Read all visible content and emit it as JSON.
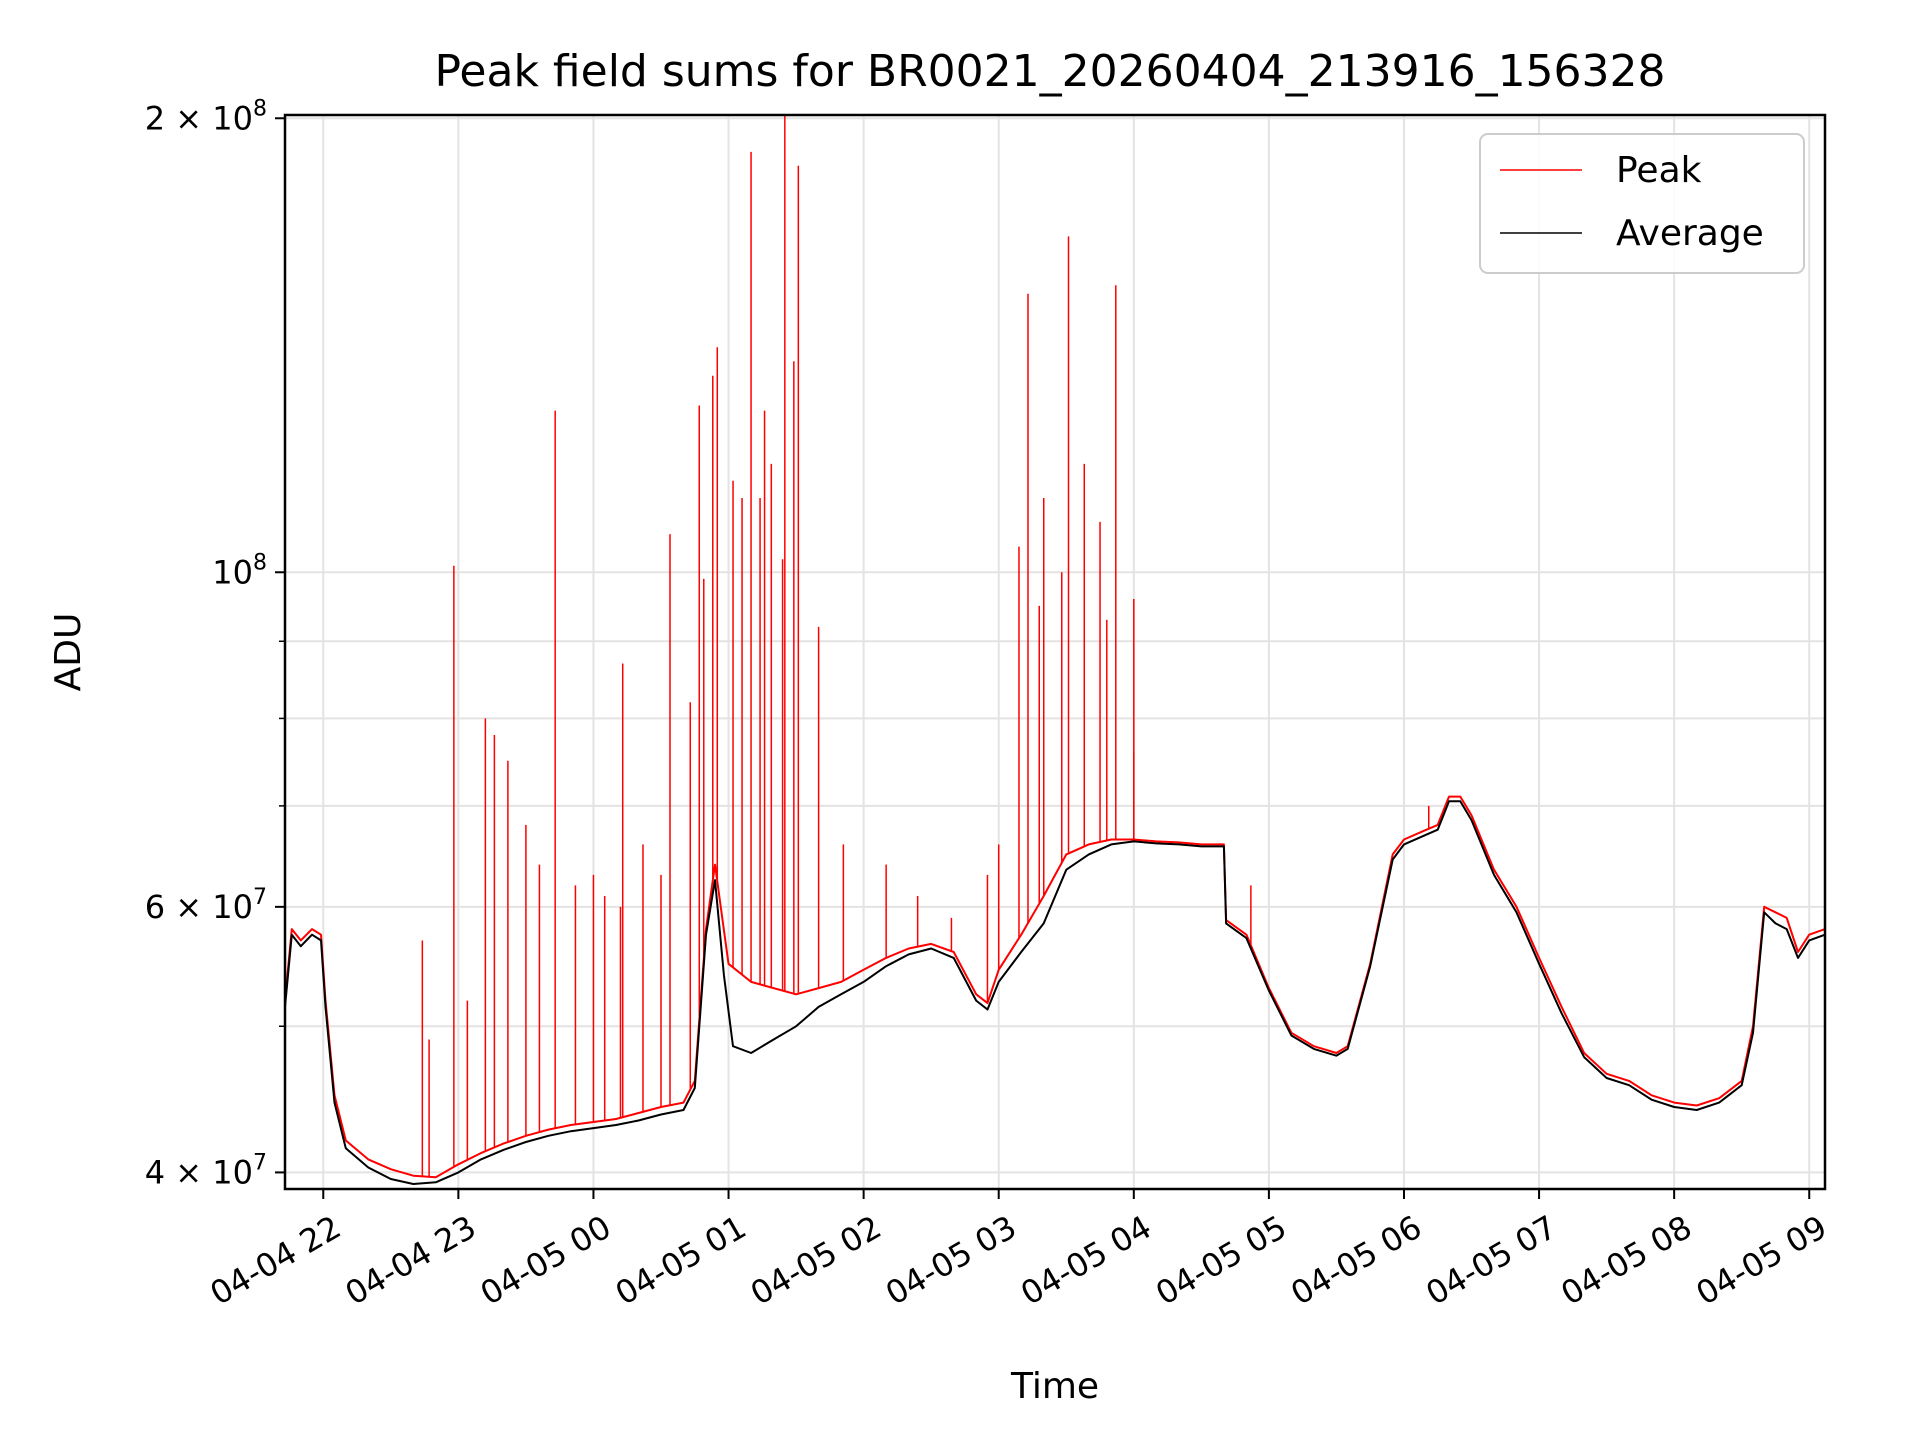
{
  "chart_data": {
    "type": "line",
    "title": "Peak field sums for BR0021_20260404_213916_156328",
    "xlabel": "Time",
    "ylabel": "ADU",
    "yscale": "log",
    "ylim": [
      39000000,
      201000000
    ],
    "xlim": [
      "04-04 21:43",
      "04-05 09:07"
    ],
    "grid": true,
    "legend": "upper right",
    "x_ticks": [
      {
        "t": "04-04 22:00",
        "label": "04-04 22"
      },
      {
        "t": "04-04 23:00",
        "label": "04-04 23"
      },
      {
        "t": "04-05 00:00",
        "label": "04-05 00"
      },
      {
        "t": "04-05 01:00",
        "label": "04-05 01"
      },
      {
        "t": "04-05 02:00",
        "label": "04-05 02"
      },
      {
        "t": "04-05 03:00",
        "label": "04-05 03"
      },
      {
        "t": "04-05 04:00",
        "label": "04-05 04"
      },
      {
        "t": "04-05 05:00",
        "label": "04-05 05"
      },
      {
        "t": "04-05 06:00",
        "label": "04-05 06"
      },
      {
        "t": "04-05 07:00",
        "label": "04-05 07"
      },
      {
        "t": "04-05 08:00",
        "label": "04-05 08"
      },
      {
        "t": "04-05 09:00",
        "label": "04-05 09"
      }
    ],
    "y_ticks": [
      {
        "v": 40000000,
        "base": "4 × 10",
        "exp": "7"
      },
      {
        "v": 60000000,
        "base": "6 × 10",
        "exp": "7"
      },
      {
        "v": 100000000,
        "base": "10",
        "exp": "8"
      },
      {
        "v": 200000000,
        "base": "2 × 10",
        "exp": "8"
      }
    ],
    "y_minor_ticks": [
      50000000,
      70000000,
      80000000,
      90000000
    ],
    "series": [
      {
        "name": "Peak",
        "color": "#ff0000",
        "points": [
          [
            "04-04 21:43",
            52000000
          ],
          [
            "04-04 21:46",
            58000000
          ],
          [
            "04-04 21:50",
            57000000
          ],
          [
            "04-04 21:55",
            58000000
          ],
          [
            "04-04 21:59",
            57500000
          ],
          [
            "04-04 22:01",
            52000000
          ],
          [
            "04-04 22:05",
            45000000
          ],
          [
            "04-04 22:10",
            42000000
          ],
          [
            "04-04 22:20",
            40800000
          ],
          [
            "04-04 22:30",
            40200000
          ],
          [
            "04-04 22:40",
            39800000
          ],
          [
            "04-04 22:50",
            39700000
          ],
          [
            "04-04 23:00",
            40500000
          ],
          [
            "04-04 23:10",
            41200000
          ],
          [
            "04-04 23:20",
            41800000
          ],
          [
            "04-04 23:30",
            42300000
          ],
          [
            "04-04 23:40",
            42700000
          ],
          [
            "04-04 23:50",
            43000000
          ],
          [
            "04-05 00:00",
            43200000
          ],
          [
            "04-05 00:10",
            43400000
          ],
          [
            "04-05 00:20",
            43800000
          ],
          [
            "04-05 00:30",
            44200000
          ],
          [
            "04-05 00:40",
            44500000
          ],
          [
            "04-05 00:45",
            46000000
          ],
          [
            "04-05 00:50",
            58000000
          ],
          [
            "04-05 00:54",
            64000000
          ],
          [
            "04-05 01:00",
            55000000
          ],
          [
            "04-05 01:10",
            53500000
          ],
          [
            "04-05 01:20",
            53000000
          ],
          [
            "04-05 01:30",
            52500000
          ],
          [
            "04-05 01:40",
            53000000
          ],
          [
            "04-05 01:50",
            53500000
          ],
          [
            "04-05 02:00",
            54500000
          ],
          [
            "04-05 02:10",
            55500000
          ],
          [
            "04-05 02:20",
            56300000
          ],
          [
            "04-05 02:30",
            56700000
          ],
          [
            "04-05 02:40",
            56000000
          ],
          [
            "04-05 02:50",
            52500000
          ],
          [
            "04-05 02:55",
            51800000
          ],
          [
            "04-05 03:00",
            54500000
          ],
          [
            "04-05 03:10",
            57500000
          ],
          [
            "04-05 03:20",
            61000000
          ],
          [
            "04-05 03:30",
            65000000
          ],
          [
            "04-05 03:40",
            66000000
          ],
          [
            "04-05 03:50",
            66500000
          ],
          [
            "04-05 04:00",
            66500000
          ],
          [
            "04-05 04:10",
            66300000
          ],
          [
            "04-05 04:20",
            66200000
          ],
          [
            "04-05 04:30",
            66000000
          ],
          [
            "04-05 04:40",
            66000000
          ],
          [
            "04-05 04:41",
            58800000
          ],
          [
            "04-05 04:50",
            57500000
          ],
          [
            "04-05 05:00",
            53000000
          ],
          [
            "04-05 05:10",
            49500000
          ],
          [
            "04-05 05:20",
            48500000
          ],
          [
            "04-05 05:30",
            48000000
          ],
          [
            "04-05 05:35",
            48500000
          ],
          [
            "04-05 05:45",
            55000000
          ],
          [
            "04-05 05:55",
            65000000
          ],
          [
            "04-05 06:00",
            66500000
          ],
          [
            "04-05 06:10",
            67500000
          ],
          [
            "04-05 06:15",
            68000000
          ],
          [
            "04-05 06:20",
            71000000
          ],
          [
            "04-05 06:25",
            71000000
          ],
          [
            "04-05 06:30",
            69000000
          ],
          [
            "04-05 06:40",
            63500000
          ],
          [
            "04-05 06:50",
            60000000
          ],
          [
            "04-05 07:00",
            55500000
          ],
          [
            "04-05 07:10",
            51500000
          ],
          [
            "04-05 07:20",
            48000000
          ],
          [
            "04-05 07:30",
            46500000
          ],
          [
            "04-05 07:40",
            46000000
          ],
          [
            "04-05 07:50",
            45000000
          ],
          [
            "04-05 08:00",
            44500000
          ],
          [
            "04-05 08:10",
            44300000
          ],
          [
            "04-05 08:20",
            44800000
          ],
          [
            "04-05 08:30",
            46000000
          ],
          [
            "04-05 08:35",
            50000000
          ],
          [
            "04-05 08:40",
            60000000
          ],
          [
            "04-05 08:45",
            59500000
          ],
          [
            "04-05 08:50",
            59000000
          ],
          [
            "04-05 08:55",
            56000000
          ],
          [
            "04-05 09:00",
            57500000
          ],
          [
            "04-05 09:07",
            58000000
          ]
        ],
        "spikes": [
          [
            "04-04 22:44",
            57000000
          ],
          [
            "04-04 22:47",
            49000000
          ],
          [
            "04-04 22:58",
            101000000
          ],
          [
            "04-04 23:04",
            52000000
          ],
          [
            "04-04 23:12",
            80000000
          ],
          [
            "04-04 23:16",
            78000000
          ],
          [
            "04-04 23:22",
            75000000
          ],
          [
            "04-04 23:30",
            68000000
          ],
          [
            "04-04 23:36",
            64000000
          ],
          [
            "04-04 23:43",
            128000000
          ],
          [
            "04-04 23:52",
            62000000
          ],
          [
            "04-05 00:00",
            63000000
          ],
          [
            "04-05 00:05",
            61000000
          ],
          [
            "04-05 00:12",
            60000000
          ],
          [
            "04-05 00:13",
            87000000
          ],
          [
            "04-05 00:22",
            66000000
          ],
          [
            "04-05 00:30",
            63000000
          ],
          [
            "04-05 00:34",
            106000000
          ],
          [
            "04-05 00:43",
            82000000
          ],
          [
            "04-05 00:47",
            129000000
          ],
          [
            "04-05 00:49",
            99000000
          ],
          [
            "04-05 00:53",
            135000000
          ],
          [
            "04-05 00:55",
            141000000
          ],
          [
            "04-05 01:02",
            115000000
          ],
          [
            "04-05 01:06",
            112000000
          ],
          [
            "04-05 01:10",
            190000000
          ],
          [
            "04-05 01:14",
            112000000
          ],
          [
            "04-05 01:16",
            128000000
          ],
          [
            "04-05 01:19",
            118000000
          ],
          [
            "04-05 01:24",
            102000000
          ],
          [
            "04-05 01:25",
            201000000
          ],
          [
            "04-05 01:29",
            138000000
          ],
          [
            "04-05 01:31",
            186000000
          ],
          [
            "04-05 01:40",
            92000000
          ],
          [
            "04-05 01:51",
            66000000
          ],
          [
            "04-05 02:10",
            64000000
          ],
          [
            "04-05 02:24",
            61000000
          ],
          [
            "04-05 02:39",
            59000000
          ],
          [
            "04-05 02:55",
            63000000
          ],
          [
            "04-05 03:00",
            66000000
          ],
          [
            "04-05 03:09",
            104000000
          ],
          [
            "04-05 03:13",
            153000000
          ],
          [
            "04-05 03:18",
            95000000
          ],
          [
            "04-05 03:20",
            112000000
          ],
          [
            "04-05 03:28",
            100000000
          ],
          [
            "04-05 03:31",
            167000000
          ],
          [
            "04-05 03:38",
            118000000
          ],
          [
            "04-05 03:45",
            108000000
          ],
          [
            "04-05 03:48",
            93000000
          ],
          [
            "04-05 03:52",
            155000000
          ],
          [
            "04-05 04:00",
            96000000
          ],
          [
            "04-05 04:00",
            76000000
          ],
          [
            "04-05 04:52",
            62000000
          ],
          [
            "04-05 06:11",
            70000000
          ]
        ]
      },
      {
        "name": "Average",
        "color": "#000000",
        "points": [
          [
            "04-04 21:43",
            51500000
          ],
          [
            "04-04 21:46",
            57500000
          ],
          [
            "04-04 21:50",
            56500000
          ],
          [
            "04-04 21:55",
            57500000
          ],
          [
            "04-04 21:59",
            57000000
          ],
          [
            "04-04 22:01",
            51500000
          ],
          [
            "04-04 22:05",
            44500000
          ],
          [
            "04-04 22:10",
            41500000
          ],
          [
            "04-04 22:20",
            40300000
          ],
          [
            "04-04 22:30",
            39600000
          ],
          [
            "04-04 22:40",
            39300000
          ],
          [
            "04-04 22:50",
            39400000
          ],
          [
            "04-04 23:00",
            40000000
          ],
          [
            "04-04 23:10",
            40800000
          ],
          [
            "04-04 23:20",
            41400000
          ],
          [
            "04-04 23:30",
            41900000
          ],
          [
            "04-04 23:40",
            42300000
          ],
          [
            "04-04 23:50",
            42600000
          ],
          [
            "04-05 00:00",
            42800000
          ],
          [
            "04-05 00:10",
            43000000
          ],
          [
            "04-05 00:20",
            43300000
          ],
          [
            "04-05 00:30",
            43700000
          ],
          [
            "04-05 00:40",
            44000000
          ],
          [
            "04-05 00:45",
            45500000
          ],
          [
            "04-05 00:50",
            57500000
          ],
          [
            "04-05 00:54",
            62500000
          ],
          [
            "04-05 00:58",
            54000000
          ],
          [
            "04-05 01:02",
            48500000
          ],
          [
            "04-05 01:10",
            48000000
          ],
          [
            "04-05 01:20",
            49000000
          ],
          [
            "04-05 01:30",
            50000000
          ],
          [
            "04-05 01:40",
            51500000
          ],
          [
            "04-05 01:50",
            52500000
          ],
          [
            "04-05 02:00",
            53500000
          ],
          [
            "04-05 02:10",
            54800000
          ],
          [
            "04-05 02:20",
            55800000
          ],
          [
            "04-05 02:30",
            56300000
          ],
          [
            "04-05 02:40",
            55500000
          ],
          [
            "04-05 02:50",
            52000000
          ],
          [
            "04-05 02:55",
            51300000
          ],
          [
            "04-05 03:00",
            53500000
          ],
          [
            "04-05 03:10",
            56000000
          ],
          [
            "04-05 03:20",
            58500000
          ],
          [
            "04-05 03:30",
            63500000
          ],
          [
            "04-05 03:40",
            65000000
          ],
          [
            "04-05 03:50",
            66000000
          ],
          [
            "04-05 04:00",
            66300000
          ],
          [
            "04-05 04:10",
            66100000
          ],
          [
            "04-05 04:20",
            66000000
          ],
          [
            "04-05 04:30",
            65800000
          ],
          [
            "04-05 04:40",
            65800000
          ],
          [
            "04-05 04:41",
            58500000
          ],
          [
            "04-05 04:50",
            57200000
          ],
          [
            "04-05 05:00",
            52800000
          ],
          [
            "04-05 05:10",
            49300000
          ],
          [
            "04-05 05:20",
            48300000
          ],
          [
            "04-05 05:30",
            47800000
          ],
          [
            "04-05 05:35",
            48300000
          ],
          [
            "04-05 05:45",
            54800000
          ],
          [
            "04-05 05:55",
            64500000
          ],
          [
            "04-05 06:00",
            66000000
          ],
          [
            "04-05 06:10",
            67000000
          ],
          [
            "04-05 06:15",
            67500000
          ],
          [
            "04-05 06:20",
            70500000
          ],
          [
            "04-05 06:25",
            70500000
          ],
          [
            "04-05 06:30",
            68500000
          ],
          [
            "04-05 06:40",
            63000000
          ],
          [
            "04-05 06:50",
            59500000
          ],
          [
            "04-05 07:00",
            55000000
          ],
          [
            "04-05 07:10",
            51000000
          ],
          [
            "04-05 07:20",
            47700000
          ],
          [
            "04-05 07:30",
            46200000
          ],
          [
            "04-05 07:40",
            45700000
          ],
          [
            "04-05 07:50",
            44700000
          ],
          [
            "04-05 08:00",
            44200000
          ],
          [
            "04-05 08:10",
            44000000
          ],
          [
            "04-05 08:20",
            44500000
          ],
          [
            "04-05 08:30",
            45700000
          ],
          [
            "04-05 08:35",
            49500000
          ],
          [
            "04-05 08:40",
            59500000
          ],
          [
            "04-05 08:45",
            58500000
          ],
          [
            "04-05 08:50",
            58000000
          ],
          [
            "04-05 08:55",
            55500000
          ],
          [
            "04-05 09:00",
            57000000
          ],
          [
            "04-05 09:07",
            57500000
          ]
        ]
      }
    ]
  }
}
